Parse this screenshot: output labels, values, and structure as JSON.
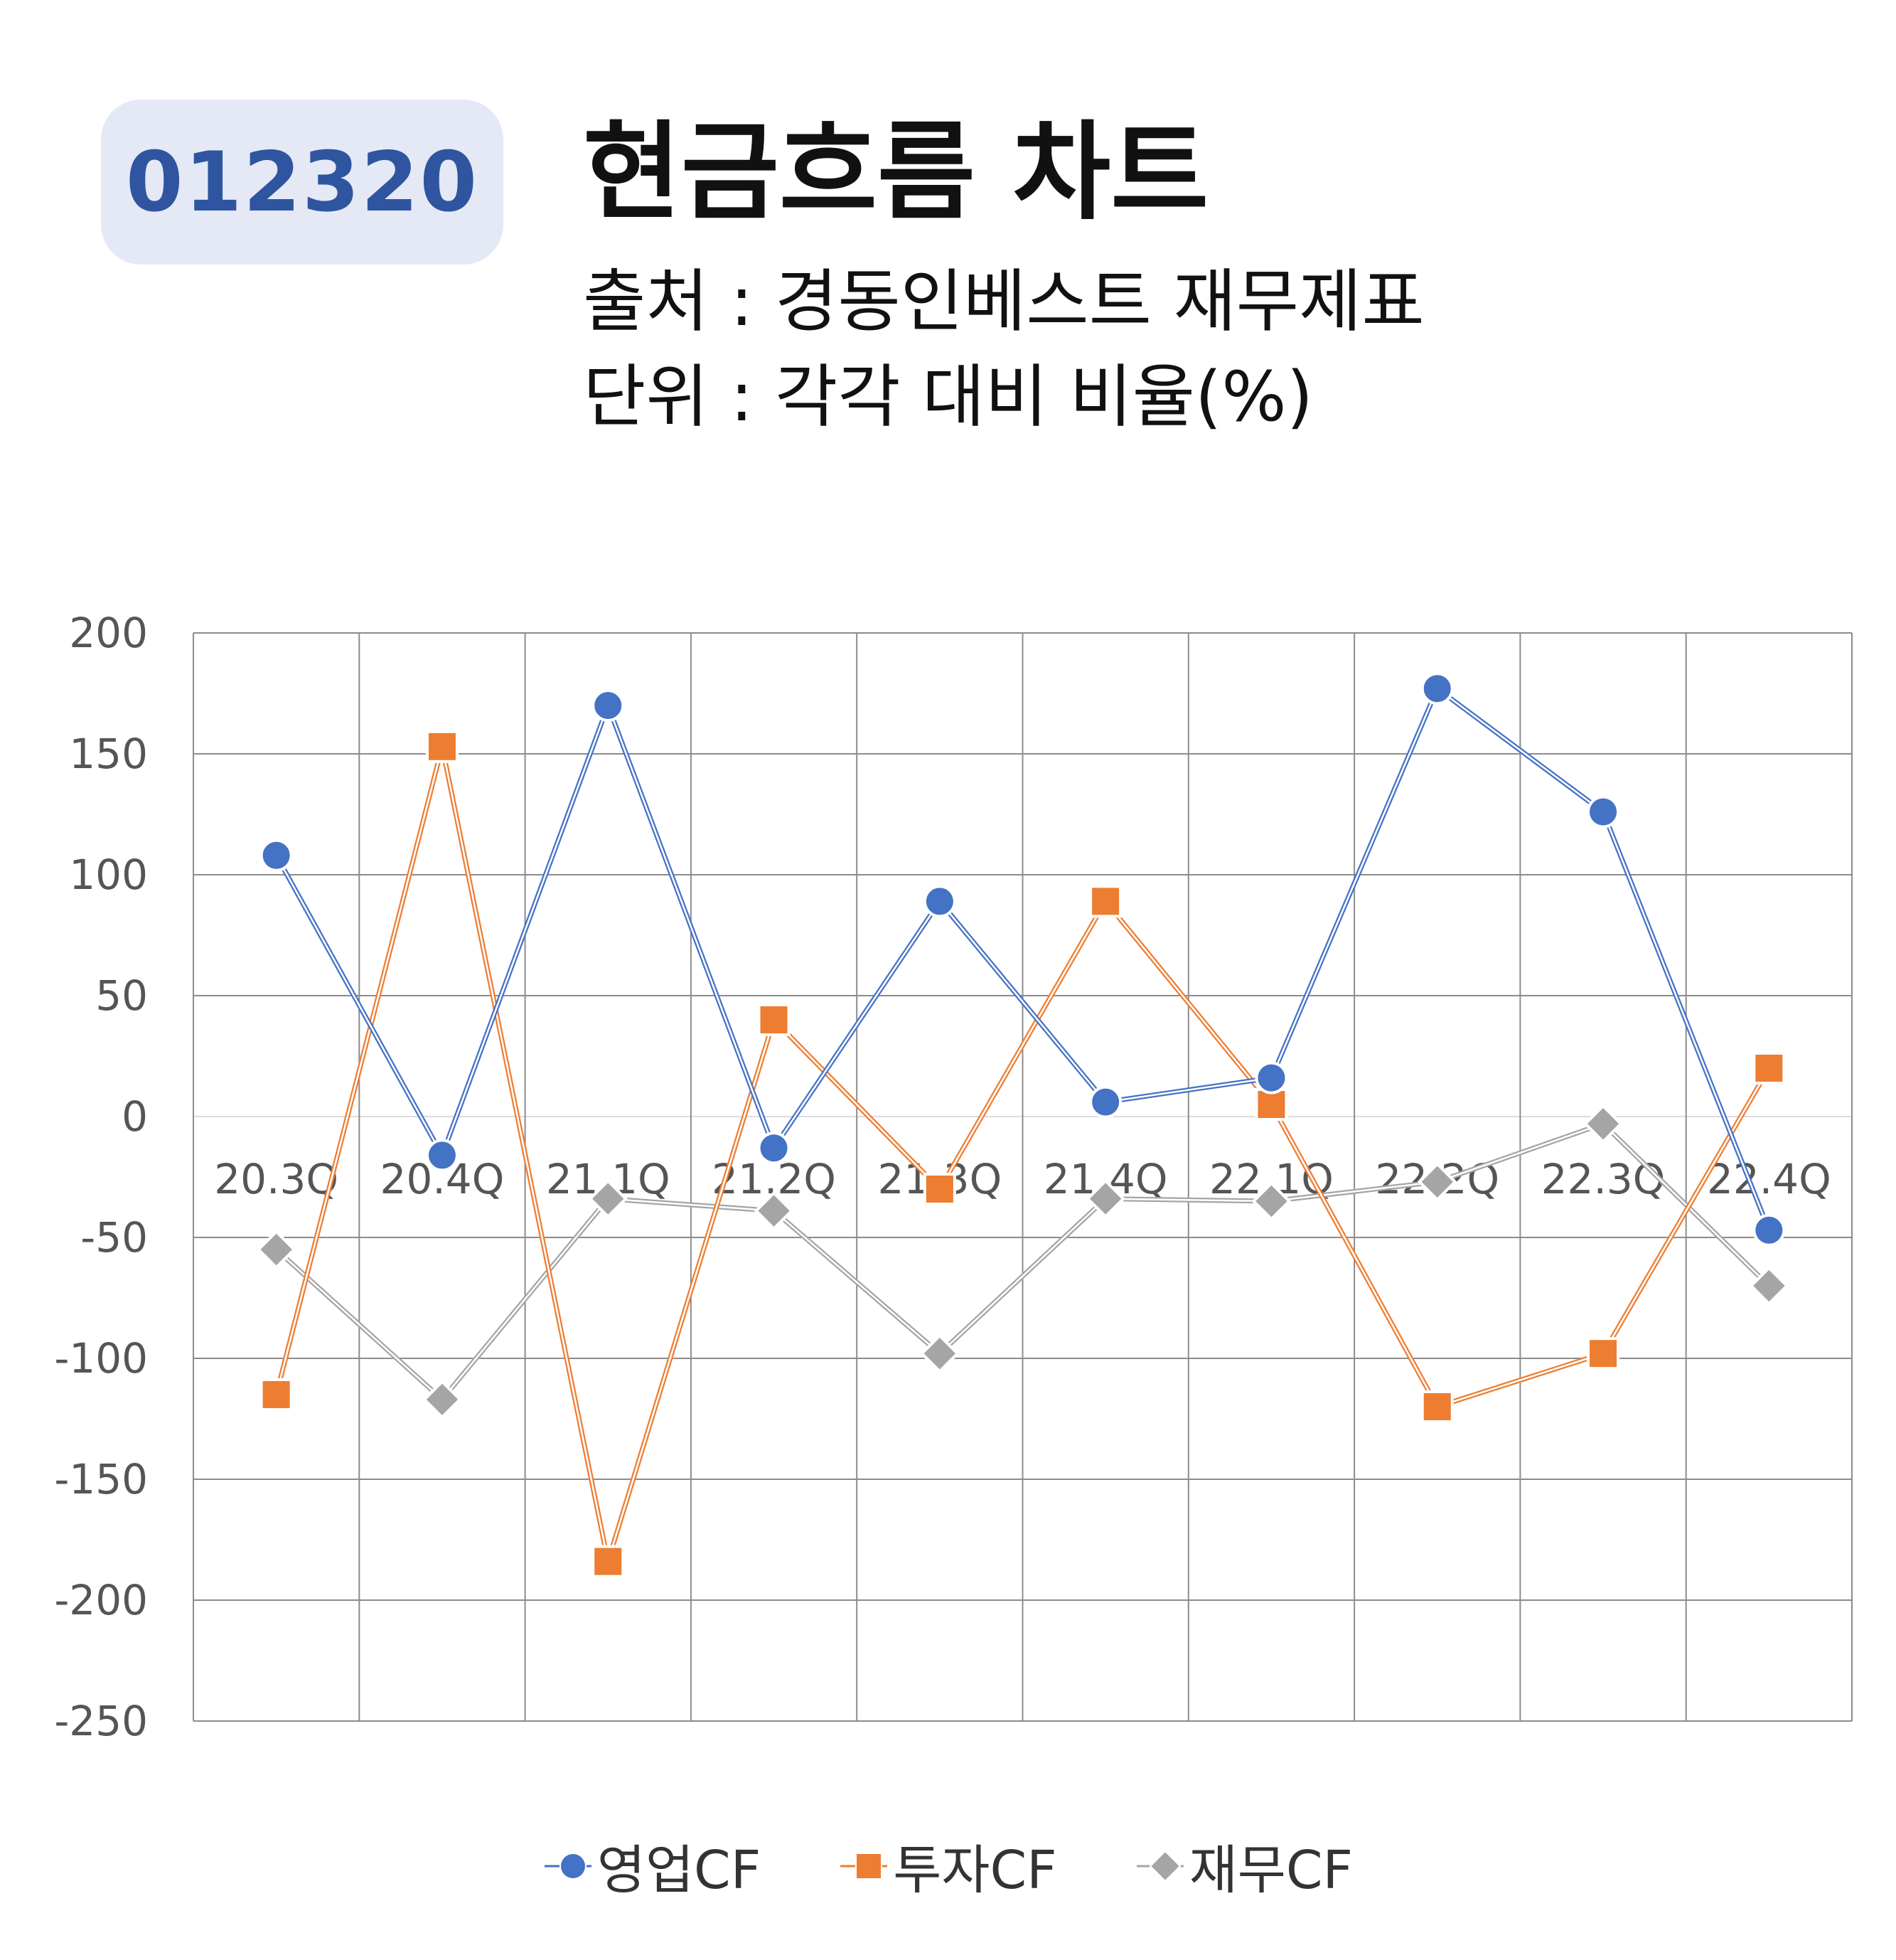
{
  "header": {
    "code": "012320",
    "title": "현금흐름 차트",
    "source": "출처 : 경동인베스트 재무제표",
    "unit": "단위 : 각각 대비 비율(%)"
  },
  "chart_data": {
    "type": "line",
    "categories": [
      "20.3Q",
      "20.4Q",
      "21.1Q",
      "21.2Q",
      "21.3Q",
      "21.4Q",
      "22.1Q",
      "22.2Q",
      "22.3Q",
      "22.4Q"
    ],
    "ylim": [
      -250,
      200
    ],
    "yticks": [
      200,
      150,
      100,
      50,
      0,
      -50,
      -100,
      -150,
      -200,
      -250
    ],
    "grid": true,
    "legend_position": "bottom",
    "series": [
      {
        "name": "영업CF",
        "color": "#4472c4",
        "marker": "circle",
        "values": [
          108,
          -16,
          170,
          -13,
          89,
          6,
          16,
          177,
          126,
          -47
        ]
      },
      {
        "name": "투자CF",
        "color": "#ed7d31",
        "marker": "square",
        "values": [
          -115,
          153,
          -184,
          40,
          -30,
          89,
          5,
          -120,
          -98,
          20
        ]
      },
      {
        "name": "재무CF",
        "color": "#a5a5a5",
        "marker": "diamond",
        "values": [
          -55,
          -117,
          -34,
          -39,
          -98,
          -34,
          -35,
          -27,
          -3,
          -70
        ]
      }
    ]
  }
}
